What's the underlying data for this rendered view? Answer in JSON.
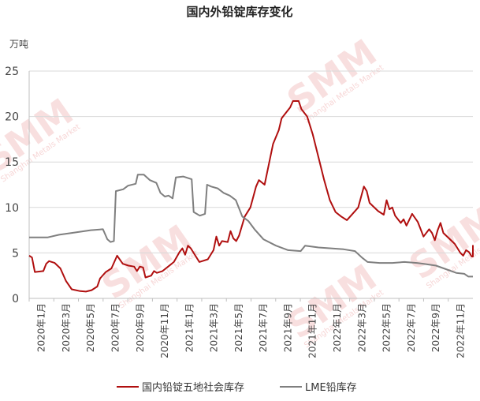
{
  "chart_data": {
    "type": "line",
    "title": "国内外铅锭库存变化",
    "ylabel": "万吨",
    "ylim": [
      0,
      25
    ],
    "yticks": [
      0,
      5,
      10,
      15,
      20,
      25
    ],
    "xticks": [
      "2020年1月",
      "2020年3月",
      "2020年5月",
      "2020年7月",
      "2020年9月",
      "2020年11月",
      "2021年1月",
      "2021年3月",
      "2021年5月",
      "2021年7月",
      "2021年9月",
      "2021年11月",
      "2022年1月",
      "2022年3月",
      "2022年5月",
      "2022年7月",
      "2022年9月",
      "2022年11月"
    ],
    "xlim": [
      "2020-01-01",
      "2022-12-31"
    ],
    "grid": "horizontal",
    "legend": "bottom",
    "colors": {
      "domestic": "#b00f0f",
      "lme": "#7f7f7f",
      "watermark": "#f4c6c6"
    },
    "series": [
      {
        "name": "国内铅锭五地社会库存",
        "points": [
          [
            "2020-01-01",
            4.7
          ],
          [
            "2020-01-08",
            4.5
          ],
          [
            "2020-01-15",
            2.9
          ],
          [
            "2020-02-05",
            3.0
          ],
          [
            "2020-02-12",
            3.8
          ],
          [
            "2020-02-19",
            4.1
          ],
          [
            "2020-03-04",
            3.9
          ],
          [
            "2020-03-18",
            3.3
          ],
          [
            "2020-04-01",
            1.9
          ],
          [
            "2020-04-15",
            1.0
          ],
          [
            "2020-05-06",
            0.8
          ],
          [
            "2020-05-20",
            0.75
          ],
          [
            "2020-06-03",
            0.9
          ],
          [
            "2020-06-17",
            1.3
          ],
          [
            "2020-06-24",
            2.2
          ],
          [
            "2020-07-08",
            2.9
          ],
          [
            "2020-07-22",
            3.3
          ],
          [
            "2020-08-05",
            4.7
          ],
          [
            "2020-08-19",
            3.8
          ],
          [
            "2020-09-02",
            3.6
          ],
          [
            "2020-09-16",
            3.5
          ],
          [
            "2020-09-23",
            3.0
          ],
          [
            "2020-09-30",
            3.5
          ],
          [
            "2020-10-08",
            3.4
          ],
          [
            "2020-10-14",
            2.3
          ],
          [
            "2020-10-28",
            2.5
          ],
          [
            "2020-11-04",
            3.0
          ],
          [
            "2020-11-11",
            2.8
          ],
          [
            "2020-11-25",
            3.0
          ],
          [
            "2020-12-09",
            3.5
          ],
          [
            "2020-12-23",
            4.0
          ],
          [
            "2021-01-06",
            5.1
          ],
          [
            "2021-01-13",
            5.5
          ],
          [
            "2021-01-20",
            4.8
          ],
          [
            "2021-01-27",
            5.8
          ],
          [
            "2021-02-03",
            5.5
          ],
          [
            "2021-02-10",
            5.0
          ],
          [
            "2021-02-24",
            4.0
          ],
          [
            "2021-03-03",
            4.1
          ],
          [
            "2021-03-17",
            4.3
          ],
          [
            "2021-03-31",
            5.3
          ],
          [
            "2021-04-07",
            6.8
          ],
          [
            "2021-04-14",
            5.8
          ],
          [
            "2021-04-21",
            6.3
          ],
          [
            "2021-05-05",
            6.2
          ],
          [
            "2021-05-12",
            7.4
          ],
          [
            "2021-05-19",
            6.6
          ],
          [
            "2021-05-26",
            6.3
          ],
          [
            "2021-06-02",
            6.9
          ],
          [
            "2021-06-16",
            9.0
          ],
          [
            "2021-06-30",
            10.0
          ],
          [
            "2021-07-14",
            12.3
          ],
          [
            "2021-07-21",
            13.0
          ],
          [
            "2021-08-04",
            12.5
          ],
          [
            "2021-08-18",
            15.5
          ],
          [
            "2021-08-25",
            17.0
          ],
          [
            "2021-09-08",
            18.5
          ],
          [
            "2021-09-15",
            19.8
          ],
          [
            "2021-09-22",
            20.2
          ],
          [
            "2021-10-06",
            21.0
          ],
          [
            "2021-10-13",
            21.7
          ],
          [
            "2021-10-27",
            21.7
          ],
          [
            "2021-11-03",
            20.8
          ],
          [
            "2021-11-17",
            20.0
          ],
          [
            "2021-11-24",
            19.0
          ],
          [
            "2021-12-01",
            18.0
          ],
          [
            "2021-12-15",
            15.5
          ],
          [
            "2021-12-29",
            13.0
          ],
          [
            "2022-01-12",
            10.8
          ],
          [
            "2022-01-26",
            9.5
          ],
          [
            "2022-02-09",
            9.0
          ],
          [
            "2022-02-23",
            8.6
          ],
          [
            "2022-03-09",
            9.3
          ],
          [
            "2022-03-23",
            10.0
          ],
          [
            "2022-04-06",
            12.3
          ],
          [
            "2022-04-13",
            11.8
          ],
          [
            "2022-04-20",
            10.5
          ],
          [
            "2022-04-27",
            10.2
          ],
          [
            "2022-05-11",
            9.6
          ],
          [
            "2022-05-25",
            9.2
          ],
          [
            "2022-06-01",
            10.8
          ],
          [
            "2022-06-08",
            9.8
          ],
          [
            "2022-06-15",
            10.0
          ],
          [
            "2022-06-22",
            9.1
          ],
          [
            "2022-07-06",
            8.3
          ],
          [
            "2022-07-13",
            8.7
          ],
          [
            "2022-07-20",
            8.0
          ],
          [
            "2022-08-03",
            9.3
          ],
          [
            "2022-08-17",
            8.4
          ],
          [
            "2022-08-24",
            7.6
          ],
          [
            "2022-08-31",
            6.8
          ],
          [
            "2022-09-14",
            7.6
          ],
          [
            "2022-09-21",
            7.2
          ],
          [
            "2022-09-28",
            6.4
          ],
          [
            "2022-10-05",
            7.5
          ],
          [
            "2022-10-12",
            8.3
          ],
          [
            "2022-10-19",
            7.2
          ],
          [
            "2022-11-02",
            6.6
          ],
          [
            "2022-11-16",
            6.0
          ],
          [
            "2022-11-30",
            5.0
          ],
          [
            "2022-12-07",
            4.7
          ],
          [
            "2022-12-14",
            5.3
          ],
          [
            "2022-12-21",
            5.1
          ],
          [
            "2022-12-28",
            4.6
          ],
          [
            "2023-01-11",
            4.6
          ],
          [
            "2023-01-18",
            5.8
          ],
          [
            "2023-01-25",
            4.8
          ]
        ]
      },
      {
        "name": "LME铅库存",
        "points": [
          [
            "2020-01-01",
            6.7
          ],
          [
            "2020-02-15",
            6.7
          ],
          [
            "2020-03-15",
            7.0
          ],
          [
            "2020-04-15",
            7.2
          ],
          [
            "2020-06-01",
            7.5
          ],
          [
            "2020-07-01",
            7.6
          ],
          [
            "2020-07-12",
            6.5
          ],
          [
            "2020-07-20",
            6.2
          ],
          [
            "2020-07-28",
            6.3
          ],
          [
            "2020-08-02",
            11.8
          ],
          [
            "2020-08-20",
            12.0
          ],
          [
            "2020-09-01",
            12.4
          ],
          [
            "2020-09-20",
            12.6
          ],
          [
            "2020-09-25",
            13.6
          ],
          [
            "2020-10-10",
            13.6
          ],
          [
            "2020-10-25",
            13.0
          ],
          [
            "2020-11-10",
            12.7
          ],
          [
            "2020-11-20",
            11.6
          ],
          [
            "2020-12-01",
            11.2
          ],
          [
            "2020-12-10",
            11.3
          ],
          [
            "2020-12-20",
            11.0
          ],
          [
            "2020-12-28",
            13.3
          ],
          [
            "2021-01-15",
            13.4
          ],
          [
            "2021-02-05",
            13.1
          ],
          [
            "2021-02-10",
            9.5
          ],
          [
            "2021-02-25",
            9.1
          ],
          [
            "2021-03-10",
            9.3
          ],
          [
            "2021-03-15",
            12.5
          ],
          [
            "2021-03-25",
            12.3
          ],
          [
            "2021-04-10",
            12.1
          ],
          [
            "2021-04-25",
            11.6
          ],
          [
            "2021-05-10",
            11.3
          ],
          [
            "2021-05-25",
            10.8
          ],
          [
            "2021-06-10",
            9.0
          ],
          [
            "2021-06-25",
            8.5
          ],
          [
            "2021-07-10",
            7.6
          ],
          [
            "2021-08-01",
            6.5
          ],
          [
            "2021-09-01",
            5.8
          ],
          [
            "2021-10-01",
            5.3
          ],
          [
            "2021-11-01",
            5.2
          ],
          [
            "2021-11-12",
            5.8
          ],
          [
            "2021-12-15",
            5.6
          ],
          [
            "2022-01-15",
            5.5
          ],
          [
            "2022-02-15",
            5.4
          ],
          [
            "2022-03-15",
            5.2
          ],
          [
            "2022-04-01",
            4.5
          ],
          [
            "2022-04-15",
            4.0
          ],
          [
            "2022-05-15",
            3.9
          ],
          [
            "2022-06-15",
            3.9
          ],
          [
            "2022-07-15",
            4.0
          ],
          [
            "2022-08-15",
            3.9
          ],
          [
            "2022-09-01",
            3.8
          ],
          [
            "2022-10-01",
            3.6
          ],
          [
            "2022-10-20",
            3.3
          ],
          [
            "2022-11-20",
            2.8
          ],
          [
            "2022-12-10",
            2.7
          ],
          [
            "2022-12-20",
            2.4
          ],
          [
            "2023-01-25",
            2.4
          ]
        ]
      }
    ],
    "watermark": {
      "text": "SMM",
      "subtext": "Shanghai Metals Market"
    }
  }
}
